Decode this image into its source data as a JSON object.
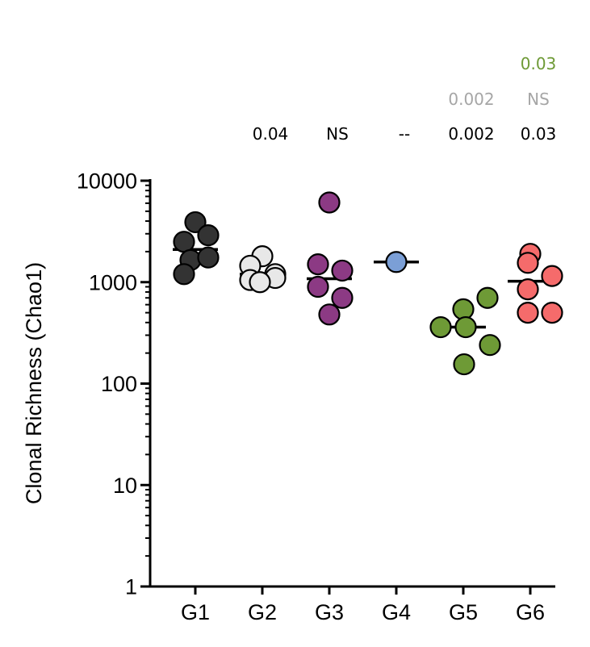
{
  "chart_data": {
    "type": "scatter",
    "ylabel": "Clonal Richness (Chao1)",
    "yscale": "log",
    "ylim": [
      1,
      10000
    ],
    "yticks": [
      {
        "value": 1,
        "label": "1"
      },
      {
        "value": 10,
        "label": "10"
      },
      {
        "value": 100,
        "label": "100"
      },
      {
        "value": 1000,
        "label": "1000"
      },
      {
        "value": 10000,
        "label": "10000"
      }
    ],
    "categories": [
      "G1",
      "G2",
      "G3",
      "G4",
      "G5",
      "G6"
    ],
    "colors": {
      "G1": "#333333",
      "G2": "#e8e8e8",
      "G3": "#8c3a84",
      "G4": "#7b9fd6",
      "G5": "#6e9a36",
      "G6": "#f56b6b"
    },
    "groups": [
      {
        "name": "G1",
        "median": 2100,
        "points": [
          3900,
          2500,
          2900,
          1650,
          1750,
          1200
        ]
      },
      {
        "name": "G2",
        "median": 1200,
        "points": [
          1800,
          1450,
          1200,
          1050,
          1100,
          1000
        ]
      },
      {
        "name": "G3",
        "median": 1080,
        "points": [
          6100,
          1500,
          1300,
          900,
          700,
          480
        ]
      },
      {
        "name": "G4",
        "median": 1580,
        "points": [
          1580
        ]
      },
      {
        "name": "G5",
        "median": 360,
        "points": [
          540,
          700,
          360,
          360,
          240,
          155
        ]
      },
      {
        "name": "G6",
        "median": 1020,
        "points": [
          1900,
          1550,
          1150,
          850,
          500,
          500
        ]
      }
    ],
    "annotations": [
      {
        "row": 1,
        "color": "#6e9a36",
        "values": {
          "G6": "0.03"
        }
      },
      {
        "row": 2,
        "color": "#a6a6a6",
        "values": {
          "G5": "0.002",
          "G6": "NS"
        }
      },
      {
        "row": 3,
        "color": "#000000",
        "values": {
          "G2": "0.04",
          "G3": "NS",
          "G4": "--",
          "G5": "0.002",
          "G6": "0.03"
        }
      }
    ]
  }
}
